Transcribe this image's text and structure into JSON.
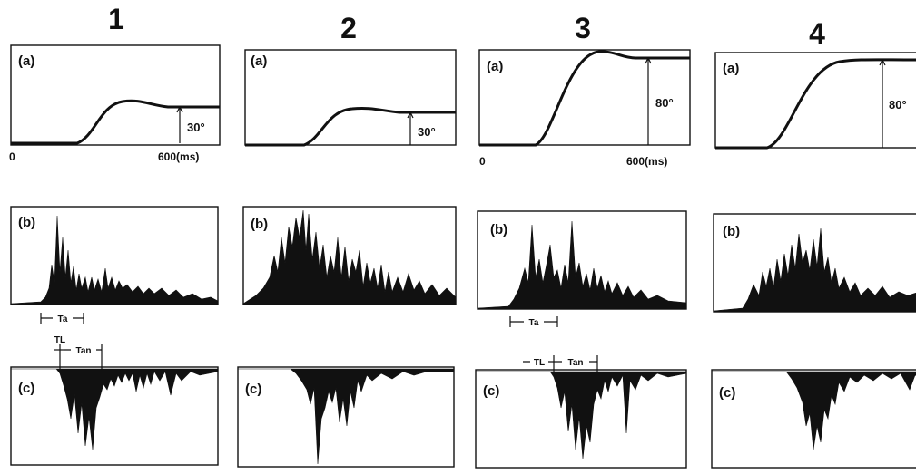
{
  "chart_data": {
    "type": "line",
    "columns": [
      {
        "heading": "1",
        "angle_label": "30°",
        "panels": {
          "a": "(a)",
          "b": "(b)",
          "c": "(c)"
        },
        "axis": {
          "zero": "0",
          "end": "600(ms)"
        },
        "interval_b": "Ta",
        "interval_c1": "TL",
        "interval_c2": "Tan"
      },
      {
        "heading": "2",
        "angle_label": "30°",
        "panels": {
          "a": "(a)",
          "b": "(b)",
          "c": "(c)"
        }
      },
      {
        "heading": "3",
        "angle_label": "80°",
        "panels": {
          "a": "(a)",
          "b": "(b)",
          "c": "(c)"
        },
        "axis": {
          "zero": "0",
          "end": "600(ms)"
        },
        "interval_b": "Ta",
        "interval_c1": "TL",
        "interval_c2": "Tan"
      },
      {
        "heading": "4",
        "angle_label": "80°",
        "panels": {
          "a": "(a)",
          "b": "(b)",
          "c": "(c)"
        }
      }
    ],
    "xlim": [
      0,
      600
    ],
    "x_unit": "ms"
  }
}
